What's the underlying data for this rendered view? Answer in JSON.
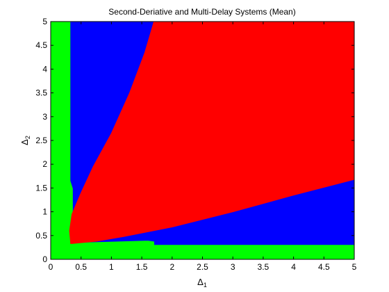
{
  "chart_data": {
    "type": "heatmap",
    "title": "Second-Deriative and Multi-Delay Systems (Mean)",
    "xlabel": {
      "main": "Δ",
      "sub": "1"
    },
    "ylabel": {
      "main": "Δ",
      "sub": "2"
    },
    "xlim": [
      0,
      5
    ],
    "ylim": [
      0,
      5
    ],
    "xticks": [
      0,
      0.5,
      1,
      1.5,
      2,
      2.5,
      3,
      3.5,
      4,
      4.5,
      5
    ],
    "yticks": [
      0,
      0.5,
      1,
      1.5,
      2,
      2.5,
      3,
      3.5,
      4,
      4.5,
      5
    ],
    "xtick_labels": [
      "0",
      "0.5",
      "1",
      "1.5",
      "2",
      "2.5",
      "3",
      "3.5",
      "4",
      "4.5",
      "5"
    ],
    "ytick_labels": [
      "0",
      "0.5",
      "1",
      "1.5",
      "2",
      "2.5",
      "3",
      "3.5",
      "4",
      "4.5",
      "5"
    ],
    "grid": false,
    "colors": {
      "green": "#00ff00",
      "blue": "#0000ff",
      "red": "#ff0000"
    },
    "regions": [
      {
        "color": "green",
        "polygon": [
          [
            0,
            0
          ],
          [
            5,
            0
          ],
          [
            5,
            5
          ],
          [
            0,
            5
          ]
        ]
      },
      {
        "color": "blue",
        "polygon": [
          [
            0.33,
            1.65
          ],
          [
            0.33,
            5
          ],
          [
            5,
            5
          ],
          [
            5,
            0.31
          ],
          [
            1.71,
            0.31
          ],
          [
            1.71,
            0.38
          ],
          [
            1.6,
            0.4
          ],
          [
            0.5,
            0.36
          ],
          [
            0.37,
            0.63
          ],
          [
            0.37,
            1.49
          ],
          [
            0.33,
            1.65
          ]
        ]
      },
      {
        "color": "red",
        "polygon": [
          [
            0.33,
            0.33
          ],
          [
            0.31,
            0.6
          ],
          [
            0.35,
            0.95
          ],
          [
            0.5,
            1.4
          ],
          [
            0.7,
            1.95
          ],
          [
            1.0,
            2.65
          ],
          [
            1.3,
            3.5
          ],
          [
            1.55,
            4.35
          ],
          [
            1.7,
            5
          ],
          [
            5,
            5
          ],
          [
            5,
            1.68
          ],
          [
            4.0,
            1.35
          ],
          [
            3.0,
            1.0
          ],
          [
            2.0,
            0.68
          ],
          [
            1.2,
            0.48
          ],
          [
            0.75,
            0.38
          ],
          [
            0.33,
            0.33
          ]
        ]
      }
    ]
  }
}
